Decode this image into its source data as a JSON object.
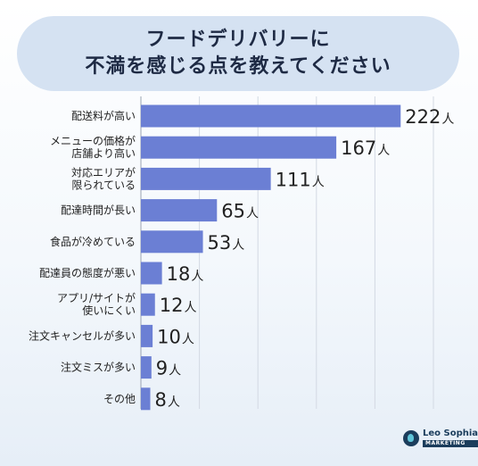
{
  "header": {
    "title_line1": "フードデリバリーに",
    "title_line2": "不満を感じる点を教えてください"
  },
  "chart_data": {
    "type": "bar",
    "orientation": "horizontal",
    "categories": [
      [
        "配送料が高い"
      ],
      [
        "メニューの価格が",
        "店舗より高い"
      ],
      [
        "対応エリアが",
        "限られている"
      ],
      [
        "配達時間が長い"
      ],
      [
        "食品が冷めている"
      ],
      [
        "配達員の態度が悪い"
      ],
      [
        "アプリ/サイトが",
        "使いにくい"
      ],
      [
        "注文キャンセルが多い"
      ],
      [
        "注文ミスが多い"
      ],
      [
        "その他"
      ]
    ],
    "values": [
      222,
      167,
      111,
      65,
      53,
      18,
      12,
      10,
      9,
      8
    ],
    "unit": "人",
    "xlim": [
      0,
      250
    ],
    "grid": true,
    "bar_color": "#6b7fd4",
    "grid_color": "#d3d9e3"
  },
  "logo": {
    "name": "Leo Sophia",
    "sub": "MARKETING"
  }
}
